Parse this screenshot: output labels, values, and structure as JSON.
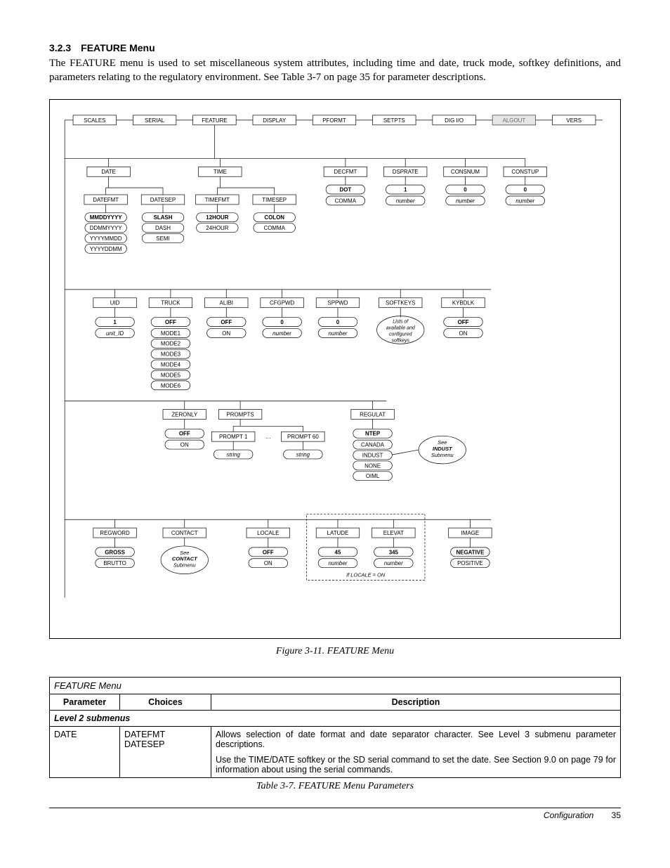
{
  "section": {
    "number": "3.2.3",
    "title": "FEATURE Menu"
  },
  "intro": "The FEATURE menu is used to set miscellaneous system attributes, including time and date, truck mode, softkey definitions, and parameters relating to the regulatory environment. See Table 3-7 on page 35 for parameter descriptions.",
  "figure_caption": "Figure 3-11. FEATURE Menu",
  "table_caption": "Table 3-7. FEATURE Menu Parameters",
  "table": {
    "title": "FEATURE Menu",
    "headers": {
      "param": "Parameter",
      "choices": "Choices",
      "desc": "Description"
    },
    "subheader": "Level 2 submenus",
    "rows": [
      {
        "param": "DATE",
        "choices": "DATEFMT\nDATESEP",
        "desc1": "Allows selection of date format and date separator character. See Level 3 submenu parameter descriptions.",
        "desc2": "Use the TIME/DATE softkey or the SD serial command to set the date. See Section 9.0 on page 79 for information about using the serial commands."
      }
    ]
  },
  "footer": {
    "label": "Configuration",
    "page": "35"
  },
  "diagram": {
    "font": "Arial",
    "box_fill": "#ffffff",
    "box_stroke": "#000000",
    "line_stroke": "#000000",
    "oval_stroke": "#000000",
    "dashed": "3,2",
    "top_row": [
      "SCALES",
      "SERIAL",
      "FEATURE",
      "DISPLAY",
      "PFORMT",
      "SETPTS",
      "DIG I/O",
      "ALGOUT",
      "VERS"
    ],
    "row2": {
      "left": [
        "DATE",
        "",
        "TIME"
      ],
      "right": [
        "DECFMT",
        "DSPRATE",
        "CONSNUM",
        "CONSTUP"
      ]
    },
    "row2_opts": {
      "decfmt_def": "DOT",
      "decfmt_alt": "COMMA",
      "dsprate_def": "1",
      "dsprate_alt": "number",
      "consnum_def": "0",
      "consnum_alt": "number",
      "constup_def": "0",
      "constup_alt": "number"
    },
    "row2_children": {
      "date": [
        "DATEFMT",
        "DATESEP"
      ],
      "time": [
        "TIMEFMT",
        "TIMESEP"
      ]
    },
    "datefmt_opts": [
      "MMDDYYYY",
      "DDMMYYYY",
      "YYYYMMDD",
      "YYYYDDMM"
    ],
    "datesep_opts": [
      "SLASH",
      "DASH",
      "SEMI"
    ],
    "timefmt_opts": [
      "12HOUR",
      "24HOUR"
    ],
    "timesep_opts": [
      "COLON",
      "COMMA"
    ],
    "row3": [
      "UID",
      "TRUCK",
      "ALIBI",
      "CFGPWD",
      "SPPWD",
      "SOFTKEYS",
      "KYBDLK"
    ],
    "row3_opts": {
      "uid": {
        "def": "1",
        "alt": "unit_ID"
      },
      "truck": {
        "def": "OFF",
        "opts": [
          "MODE1",
          "MODE2",
          "MODE3",
          "MODE4",
          "MODE5",
          "MODE6"
        ]
      },
      "alibi": {
        "def": "OFF",
        "alt": "ON"
      },
      "cfgpwd": {
        "def": "0",
        "alt": "number"
      },
      "sppwd": {
        "def": "0",
        "alt": "number"
      },
      "softkeys_note": "Lists of\navailable and\nconfigured\nsoftkeys",
      "kybdlk": {
        "def": "OFF",
        "alt": "ON"
      }
    },
    "row4": {
      "zeronly": {
        "label": "ZERONLY",
        "def": "OFF",
        "alt": "ON"
      },
      "prompts": {
        "label": "PROMPTS",
        "p1": "PROMPT 1",
        "pdots": "…",
        "p60": "PROMPT 60",
        "s1": "string",
        "s2": "string"
      },
      "regulat": {
        "label": "REGULAT",
        "def": "NTEP",
        "opts": [
          "CANADA",
          "INDUST",
          "NONE",
          "OIML"
        ],
        "note": "See\nINDUST\nSubmenu"
      }
    },
    "row5": {
      "items": [
        "REGWORD",
        "CONTACT",
        "LOCALE",
        "LATUDE",
        "ELEVAT",
        "IMAGE"
      ],
      "regword": {
        "def": "GROSS",
        "alt": "BRUTTO"
      },
      "contact_note": "See\nCONTACT\nSubmenu",
      "locale": {
        "def": "OFF",
        "alt": "ON"
      },
      "latude": {
        "def": "45",
        "alt": "number"
      },
      "elevat": {
        "def": "345",
        "alt": "number"
      },
      "image": {
        "def": "NEGATIVE",
        "alt": "POSITIVE"
      },
      "if_note": "If LOCALE = ON"
    }
  }
}
